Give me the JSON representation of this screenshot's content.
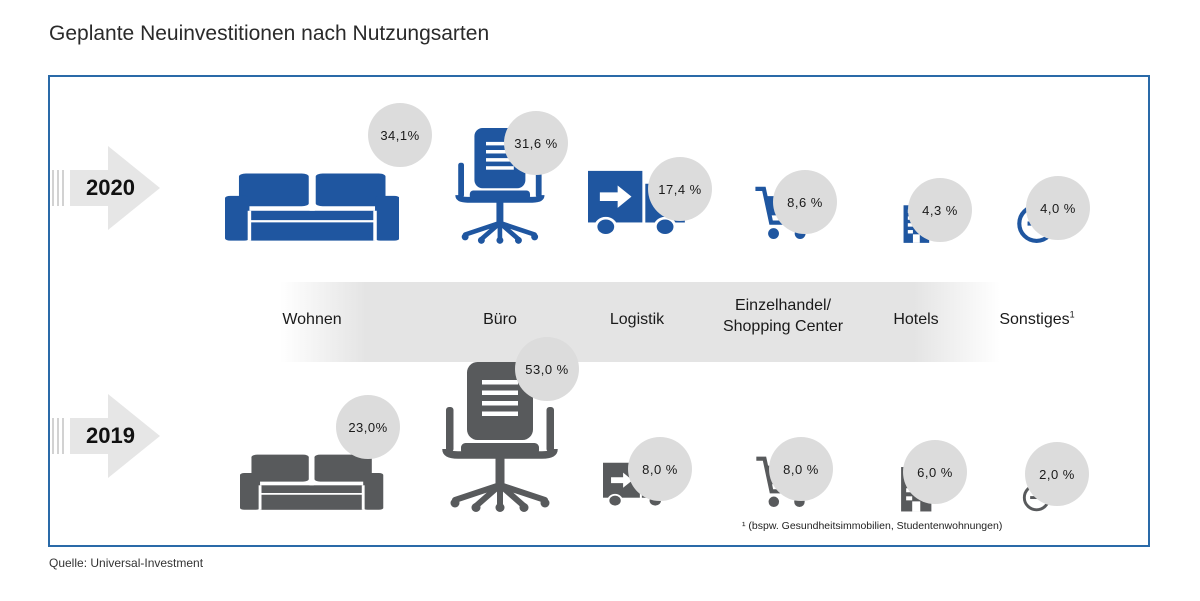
{
  "title": "Geplante Neuinvestitionen nach Nutzungsarten",
  "source": "Quelle: Universal-Investment",
  "footnote": "¹ (bspw. Gesundheitsimmobilien, Studentenwohnungen)",
  "footnote_marker": "1",
  "colors": {
    "blue": "#1f56a0",
    "gray": "#585a5c",
    "bubble": "#dcdcdc",
    "border": "#2a6aa8"
  },
  "chart_data": {
    "type": "bar",
    "title": "Geplante Neuinvestitionen nach Nutzungsarten",
    "categories": [
      "Wohnen",
      "Büro",
      "Logistik",
      "Einzelhandel/ Shopping Center",
      "Hotels",
      "Sonstiges¹"
    ],
    "category_lines": [
      [
        "Wohnen"
      ],
      [
        "Büro"
      ],
      [
        "Logistik"
      ],
      [
        "Einzelhandel/",
        "Shopping Center"
      ],
      [
        "Hotels"
      ],
      [
        "Sonstiges"
      ]
    ],
    "icons": [
      "sofa-icon",
      "office-chair-icon",
      "truck-icon",
      "shopping-cart-icon",
      "hotel-building-icon",
      "other-circle-icon"
    ],
    "series": [
      {
        "name": "2020",
        "values": [
          34.1,
          31.6,
          17.4,
          8.6,
          4.3,
          4.0
        ],
        "labels": [
          "34,1%",
          "31,6 %",
          "17,4 %",
          "8,6 %",
          "4,3 %",
          "4,0 %"
        ],
        "color": "#1f56a0"
      },
      {
        "name": "2019",
        "values": [
          23.0,
          53.0,
          8.0,
          8.0,
          6.0,
          2.0
        ],
        "labels": [
          "23,0%",
          "53,0 %",
          "8,0 %",
          "8,0 %",
          "6,0 %",
          "2,0 %"
        ],
        "color": "#585a5c"
      }
    ],
    "unit": "%",
    "encoding": "icon size proportional to value"
  }
}
